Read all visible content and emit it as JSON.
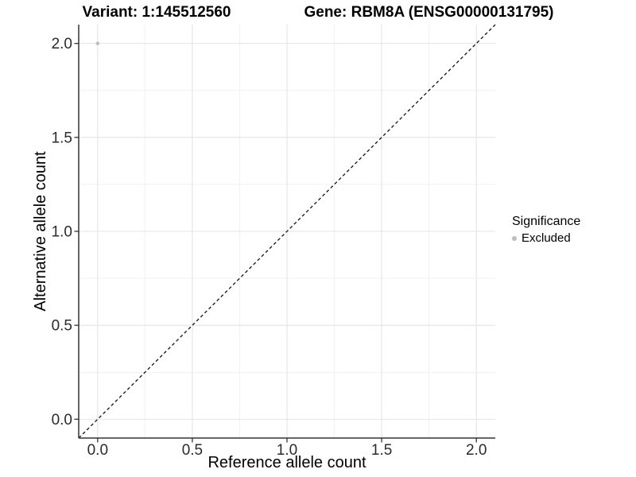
{
  "chart_data": {
    "type": "scatter",
    "title_left": "Variant: 1:145512560",
    "title_right": "Gene: RBM8A (ENSG00000131795)",
    "xlabel": "Reference allele count",
    "ylabel": "Alternative allele count",
    "xlim": [
      -0.1,
      2.1
    ],
    "ylim": [
      -0.1,
      2.1
    ],
    "x_ticks": {
      "values": [
        0,
        0.5,
        1,
        1.5,
        2
      ],
      "labels": [
        "0.0",
        "0.5",
        "1.0",
        "1.5",
        "2.0"
      ]
    },
    "y_ticks": {
      "values": [
        0,
        0.5,
        1,
        1.5,
        2
      ],
      "labels": [
        "0.0",
        "0.5",
        "1.0",
        "1.5",
        "2.0"
      ]
    },
    "minor_ticks": [
      0.25,
      0.75,
      1.25,
      1.75
    ],
    "grid": "major+minor",
    "series": [
      {
        "name": "Excluded",
        "color": "#bdbdbd",
        "points": [
          {
            "x": 0.0,
            "y": 2.0
          }
        ]
      }
    ],
    "reference_line": {
      "style": "dashed",
      "color": "#111111",
      "from": [
        -0.1,
        -0.1
      ],
      "to": [
        2.1,
        2.1
      ]
    },
    "legend": {
      "title": "Significance",
      "position": "right",
      "items": [
        {
          "label": "Excluded",
          "color": "#bdbdbd",
          "marker": "circle"
        }
      ]
    },
    "colors": {
      "background": "#ffffff",
      "grid_major": "#e4e4e4",
      "grid_minor": "#efefef",
      "axis": "#333333",
      "tick_text": "#2b2b2b",
      "title_text": "#000000"
    }
  }
}
